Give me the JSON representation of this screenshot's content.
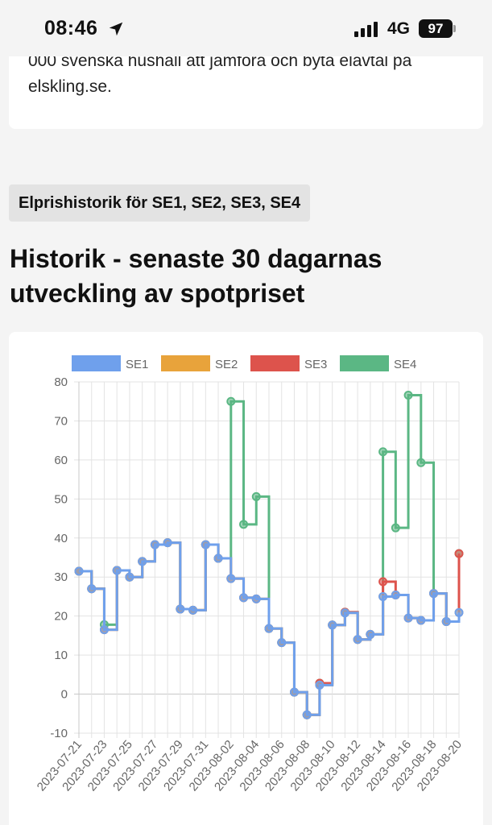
{
  "status_bar": {
    "time": "08:46",
    "network": "4G",
    "battery": "97",
    "icons": [
      "location-arrow-icon",
      "signal-bars-icon",
      "battery-icon"
    ]
  },
  "intro_card": {
    "text": "000 svenska hushåll att jämföra och byta elavtal på elskling.se."
  },
  "section_badge": "Elprishistorik för SE1, SE2, SE3, SE4",
  "heading": "Historik - senaste 30 dagarnas utveckling av spotpriset",
  "colors": {
    "SE1": "#6fa0ec",
    "SE2": "#e8a33b",
    "SE3": "#dd534c",
    "SE4": "#5bb784",
    "grid": "#e3e3e3"
  },
  "chart_data": {
    "type": "line",
    "stepped": true,
    "title": "",
    "xlabel": "",
    "ylabel": "",
    "ylim": [
      -10,
      80
    ],
    "yticks": [
      -10,
      0,
      10,
      20,
      30,
      40,
      50,
      60,
      70,
      80
    ],
    "grid": true,
    "legend_position": "top",
    "x": [
      "2023-07-21",
      "2023-07-22",
      "2023-07-23",
      "2023-07-24",
      "2023-07-25",
      "2023-07-26",
      "2023-07-27",
      "2023-07-28",
      "2023-07-29",
      "2023-07-30",
      "2023-07-31",
      "2023-08-01",
      "2023-08-02",
      "2023-08-03",
      "2023-08-04",
      "2023-08-05",
      "2023-08-06",
      "2023-08-07",
      "2023-08-08",
      "2023-08-09",
      "2023-08-10",
      "2023-08-11",
      "2023-08-12",
      "2023-08-13",
      "2023-08-14",
      "2023-08-15",
      "2023-08-16",
      "2023-08-17",
      "2023-08-18",
      "2023-08-19",
      "2023-08-20"
    ],
    "x_tick_labels": [
      "2023-07-21",
      "2023-07-23",
      "2023-07-25",
      "2023-07-27",
      "2023-07-29",
      "2023-07-31",
      "2023-08-02",
      "2023-08-04",
      "2023-08-06",
      "2023-08-08",
      "2023-08-10",
      "2023-08-12",
      "2023-08-14",
      "2023-08-16",
      "2023-08-18",
      "2023-08-20"
    ],
    "series": [
      {
        "name": "SE1",
        "values": [
          31.5,
          27,
          16.5,
          31.7,
          30,
          34,
          38.3,
          38.8,
          21.8,
          21.5,
          38.3,
          34.8,
          29.6,
          24.7,
          24.4,
          16.8,
          13.2,
          0.5,
          -5.3,
          2.3,
          17.7,
          20.8,
          14,
          15.3,
          25,
          25.4,
          19.5,
          18.9,
          25.8,
          18.6,
          20.9
        ]
      },
      {
        "name": "SE2",
        "values": [
          31.5,
          27,
          16.5,
          31.7,
          30,
          34,
          38.3,
          38.8,
          21.8,
          21.5,
          38.3,
          34.8,
          29.6,
          24.7,
          24.4,
          16.8,
          13.2,
          0.5,
          -5.3,
          2.3,
          17.7,
          20.8,
          14,
          15.3,
          25,
          25.4,
          19.5,
          18.9,
          25.8,
          18.6,
          20.9
        ]
      },
      {
        "name": "SE3",
        "values": [
          31.5,
          27,
          16.5,
          31.7,
          30,
          34,
          38.3,
          38.8,
          21.8,
          21.5,
          38.3,
          34.8,
          29.6,
          24.7,
          24.4,
          16.8,
          13.2,
          0.5,
          -5.3,
          2.8,
          17.7,
          21,
          14,
          15.3,
          28.8,
          25.4,
          19.5,
          18.9,
          25.8,
          18.6,
          36
        ]
      },
      {
        "name": "SE4",
        "values": [
          31.5,
          27,
          17.8,
          31.7,
          30,
          34,
          38.3,
          38.8,
          21.8,
          21.5,
          38.3,
          34.8,
          75,
          43.5,
          50.6,
          16.8,
          13.2,
          0.5,
          -5.3,
          2.8,
          17.7,
          21,
          14,
          15.3,
          62.1,
          42.6,
          76.6,
          59.3,
          25.8,
          18.6,
          36
        ]
      }
    ]
  }
}
